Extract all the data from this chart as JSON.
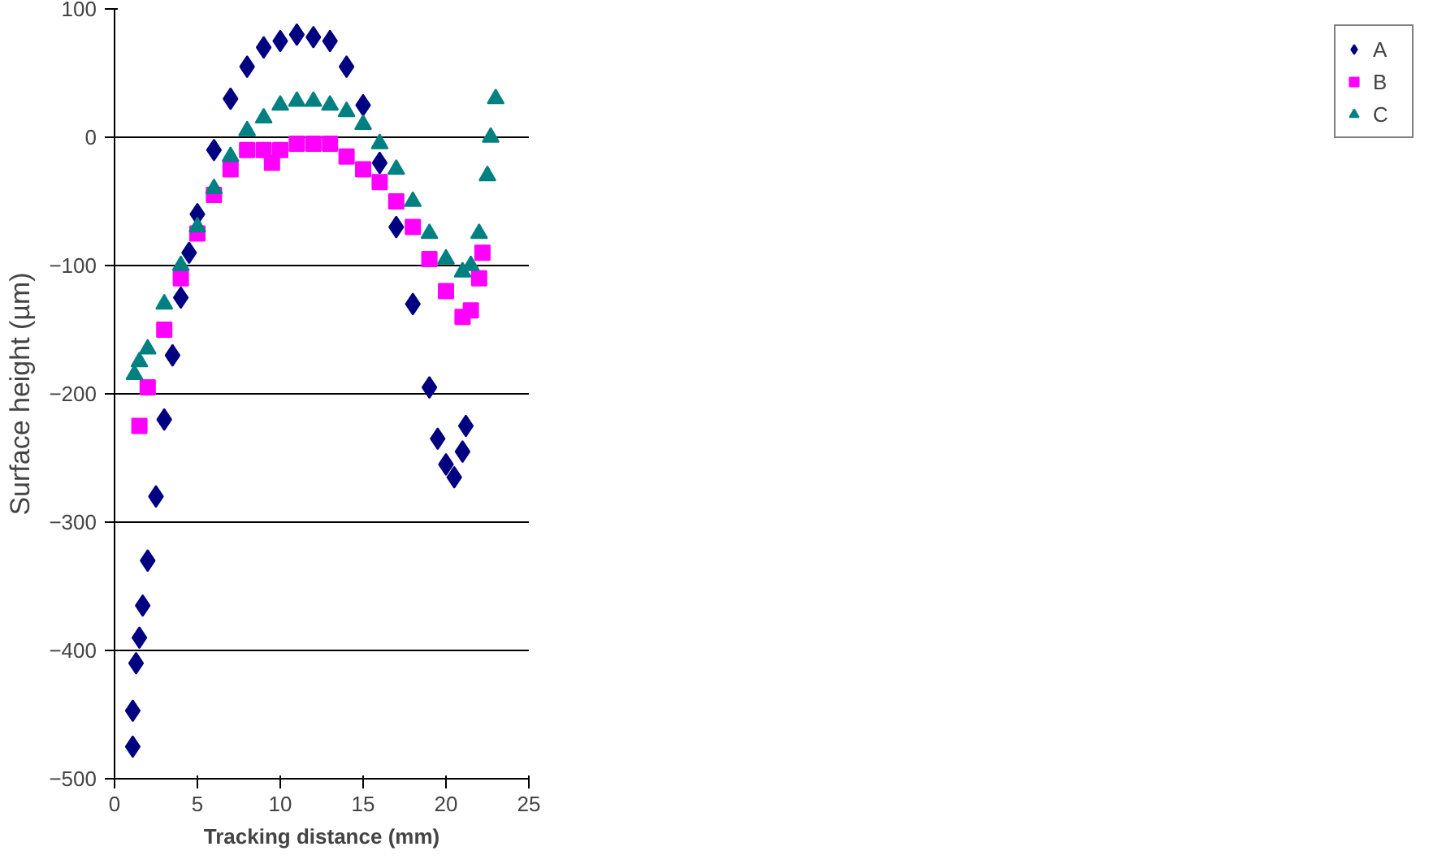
{
  "chart_data": {
    "type": "scatter",
    "xlabel": "Tracking distance (mm)",
    "ylabel": "Surface height (µm)",
    "xlim": [
      0,
      25
    ],
    "xticks": [
      0,
      5,
      10,
      15,
      20,
      25
    ],
    "ylim": [
      -500,
      100
    ],
    "yticks": [
      -500,
      -400,
      -300,
      -200,
      -100,
      0,
      100
    ],
    "grid": "y",
    "legend": "right",
    "series": [
      {
        "name": "A",
        "color": "#000080",
        "marker": "diamond",
        "x": [
          1.1,
          1.1,
          1.3,
          1.5,
          1.7,
          2,
          2.5,
          3,
          3.5,
          4,
          4.5,
          5,
          6,
          7,
          8,
          9,
          10,
          11,
          12,
          13,
          14,
          15,
          16,
          17,
          18,
          19,
          19.5,
          20,
          20.5,
          21,
          21.2
        ],
        "values": [
          -475,
          -447,
          -410,
          -390,
          -365,
          -330,
          -280,
          -220,
          -170,
          -125,
          -90,
          -60,
          -10,
          30,
          55,
          70,
          75,
          80,
          78,
          75,
          55,
          25,
          -20,
          -70,
          -130,
          -195,
          -235,
          -255,
          -265,
          -245,
          -225
        ]
      },
      {
        "name": "B",
        "color": "#ff00ff",
        "marker": "square",
        "x": [
          1.5,
          2,
          3,
          4,
          5,
          6,
          7,
          8,
          9,
          9.5,
          10,
          11,
          12,
          13,
          14,
          15,
          16,
          17,
          18,
          19,
          20,
          21,
          21.5,
          22,
          22.2
        ],
        "values": [
          -225,
          -195,
          -150,
          -110,
          -75,
          -45,
          -25,
          -10,
          -10,
          -20,
          -10,
          -5,
          -5,
          -5,
          -15,
          -25,
          -35,
          -50,
          -70,
          -95,
          -120,
          -140,
          -135,
          -110,
          -90
        ]
      },
      {
        "name": "C",
        "color": "#008080",
        "marker": "triangle",
        "x": [
          1.2,
          1.5,
          2,
          3,
          4,
          5,
          6,
          7,
          8,
          9,
          10,
          11,
          12,
          13,
          14,
          15,
          16,
          17,
          18,
          19,
          20,
          21,
          21.5,
          22,
          22.5,
          22.7,
          23
        ],
        "values": [
          -185,
          -175,
          -165,
          -130,
          -100,
          -70,
          -40,
          -15,
          5,
          15,
          25,
          28,
          28,
          25,
          20,
          10,
          -5,
          -25,
          -50,
          -75,
          -95,
          -105,
          -100,
          -75,
          -30,
          0,
          30
        ]
      }
    ]
  }
}
